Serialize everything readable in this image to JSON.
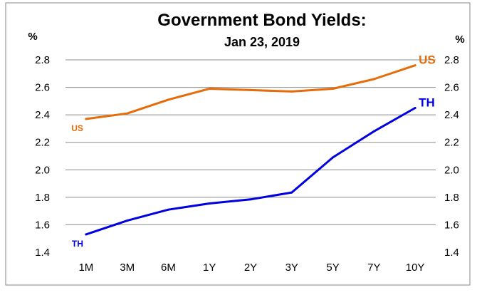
{
  "chart_data": {
    "type": "line",
    "title": "Government Bond Yields:",
    "subtitle": "Jan 23, 2019",
    "ylabel_left": "%",
    "ylabel_right": "%",
    "ylim": [
      1.4,
      2.8
    ],
    "yticks": [
      "1.4",
      "1.6",
      "1.8",
      "2.0",
      "2.2",
      "2.4",
      "2.6",
      "2.8"
    ],
    "categories": [
      "1M",
      "3M",
      "6M",
      "1Y",
      "2Y",
      "3Y",
      "5Y",
      "7Y",
      "10Y"
    ],
    "grid": true,
    "series": [
      {
        "name": "US",
        "color": "#E46C0A",
        "values": [
          2.37,
          2.41,
          2.51,
          2.59,
          2.58,
          2.57,
          2.59,
          2.66,
          2.76
        ],
        "label_start": "US",
        "label_end": "US"
      },
      {
        "name": "TH",
        "color": "#0000E0",
        "values": [
          1.53,
          1.63,
          1.71,
          1.755,
          1.785,
          1.835,
          2.09,
          2.28,
          2.45
        ],
        "label_start": "TH",
        "label_end": "TH"
      }
    ]
  }
}
